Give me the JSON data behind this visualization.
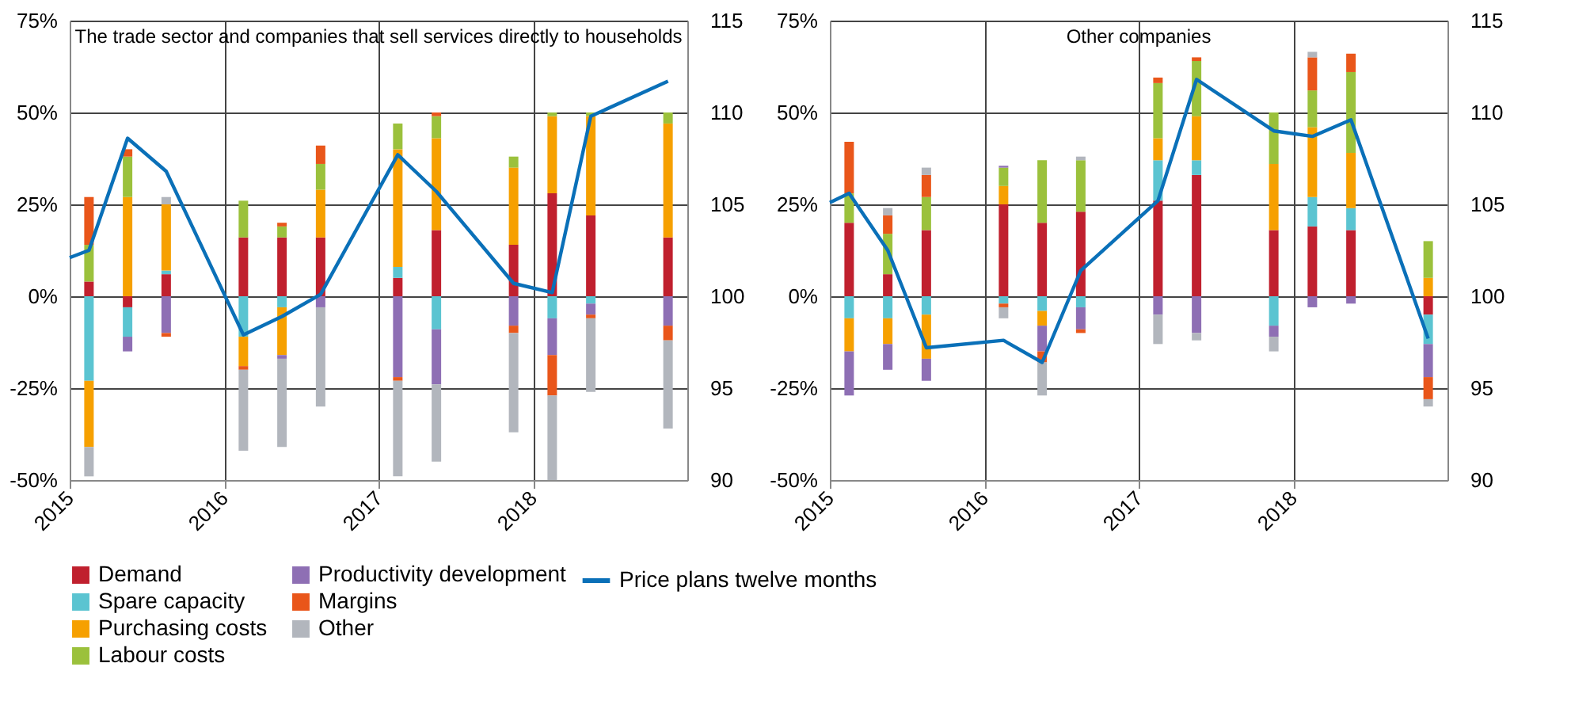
{
  "chart_data": [
    {
      "type": "bar",
      "stacked": true,
      "title": "The trade sector and companies that sell services directly to households",
      "x": [
        2015.125,
        2015.375,
        2015.625,
        2016.125,
        2016.375,
        2016.625,
        2017.125,
        2017.375,
        2017.875,
        2018.125,
        2018.375,
        2018.875
      ],
      "xlim": [
        2015,
        2019
      ],
      "xticks": [
        2015,
        2016,
        2017,
        2018
      ],
      "ylim": [
        -50,
        75
      ],
      "yticks": [
        {
          "value": -50,
          "label": "-50%"
        },
        {
          "value": -25,
          "label": "-25%"
        },
        {
          "value": 0,
          "label": "0%"
        },
        {
          "value": 25,
          "label": "25%"
        },
        {
          "value": 50,
          "label": "50%"
        },
        {
          "value": 75,
          "label": "75%"
        }
      ],
      "y2lim": [
        90,
        115
      ],
      "y2ticks": [
        90,
        95,
        100,
        105,
        110,
        115
      ],
      "grid": true,
      "legend": "bottom",
      "series": [
        {
          "name": "Price plans twelve months",
          "type": "line",
          "axis": "y2",
          "color": "#0a70b8",
          "x": [
            2015,
            2015.125,
            2015.375,
            2015.625,
            2016.125,
            2016.375,
            2016.625,
            2017.125,
            2017.375,
            2017.875,
            2018.125,
            2018.375,
            2018.875
          ],
          "values": [
            102.1,
            102.5,
            108.6,
            106.8,
            97.9,
            98.9,
            100.1,
            107.7,
            105.7,
            100.7,
            100.2,
            109.8,
            111.7
          ]
        },
        {
          "name": "Demand",
          "color": "#c0202e",
          "values": [
            4,
            -3,
            6,
            16,
            16,
            16,
            5,
            18,
            14,
            28,
            22,
            16
          ]
        },
        {
          "name": "Spare capacity",
          "color": "#5bc4d1",
          "values": [
            -23,
            -8,
            1,
            -11,
            -3,
            null,
            3,
            -9,
            null,
            -6,
            -2,
            null
          ]
        },
        {
          "name": "Purchasing costs",
          "color": "#f6a000",
          "values": [
            -18,
            27,
            18,
            -8,
            -13,
            13,
            32,
            25,
            21,
            21,
            27,
            31
          ]
        },
        {
          "name": "Labour costs",
          "color": "#9bc13c",
          "values": [
            10,
            11,
            null,
            10,
            3,
            7,
            7,
            6,
            3,
            1,
            1,
            3
          ]
        },
        {
          "name": "Productivity development",
          "color": "#8e6fb4",
          "values": [
            null,
            -4,
            -10,
            null,
            -1,
            -3,
            -22,
            -15,
            -8,
            -10,
            -3,
            -8
          ]
        },
        {
          "name": "Margins",
          "color": "#e9561a",
          "values": [
            13,
            2,
            -1,
            -1,
            1,
            5,
            -1,
            1,
            -2,
            -11,
            -1,
            -4
          ]
        },
        {
          "name": "Other",
          "color": "#b2b6bd",
          "values": [
            -8,
            null,
            2,
            -22,
            -24,
            -27,
            -26,
            -21,
            -27,
            -23,
            -20,
            -24
          ]
        }
      ]
    },
    {
      "type": "bar",
      "stacked": true,
      "title": "Other companies",
      "x": [
        2015.125,
        2015.375,
        2015.625,
        2016.125,
        2016.375,
        2016.625,
        2017.125,
        2017.375,
        2017.875,
        2018.125,
        2018.375,
        2018.875
      ],
      "xlim": [
        2015,
        2019
      ],
      "xticks": [
        2015,
        2016,
        2017,
        2018
      ],
      "ylim": [
        -50,
        75
      ],
      "yticks": [
        {
          "value": -50,
          "label": "-50%"
        },
        {
          "value": -25,
          "label": "-25%"
        },
        {
          "value": 0,
          "label": "0%"
        },
        {
          "value": 25,
          "label": "25%"
        },
        {
          "value": 50,
          "label": "50%"
        },
        {
          "value": 75,
          "label": "75%"
        }
      ],
      "y2lim": [
        90,
        115
      ],
      "y2ticks": [
        90,
        95,
        100,
        105,
        110,
        115
      ],
      "grid": true,
      "legend": "bottom",
      "series": [
        {
          "name": "Price plans twelve months",
          "type": "line",
          "axis": "y2",
          "color": "#0a70b8",
          "x": [
            2015,
            2015.125,
            2015.375,
            2015.625,
            2016.125,
            2016.375,
            2016.625,
            2017.125,
            2017.375,
            2017.875,
            2018.125,
            2018.375,
            2018.875
          ],
          "values": [
            105.1,
            105.6,
            102.5,
            97.2,
            97.6,
            96.4,
            101.4,
            105.2,
            111.8,
            109.0,
            108.7,
            109.6,
            97.7
          ]
        },
        {
          "name": "Demand",
          "color": "#c0202e",
          "values": [
            20,
            6,
            18,
            25,
            20,
            23,
            26,
            33,
            18,
            19,
            18,
            -5
          ]
        },
        {
          "name": "Spare capacity",
          "color": "#5bc4d1",
          "values": [
            -6,
            -6,
            -5,
            -2,
            -4,
            -3,
            11,
            4,
            -8,
            8,
            6,
            -8
          ]
        },
        {
          "name": "Purchasing costs",
          "color": "#f6a000",
          "values": [
            -9,
            -7,
            -12,
            5,
            -4,
            null,
            6,
            12,
            18,
            19,
            15,
            5
          ]
        },
        {
          "name": "Labour costs",
          "color": "#9bc13c",
          "values": [
            8,
            11,
            9,
            5,
            17,
            14,
            15,
            15,
            14,
            10,
            22,
            10
          ]
        },
        {
          "name": "Productivity development",
          "color": "#8e6fb4",
          "values": [
            -12,
            -7,
            -6,
            0.5,
            -7,
            -6,
            -5,
            -10,
            -3,
            -3,
            -2,
            -9
          ]
        },
        {
          "name": "Margins",
          "color": "#e9561a",
          "values": [
            14,
            5,
            6,
            -1,
            -3,
            -1,
            1.5,
            1,
            null,
            9,
            5,
            -6
          ]
        },
        {
          "name": "Other",
          "color": "#b2b6bd",
          "values": [
            null,
            2,
            2,
            -3,
            -9,
            1,
            -8,
            -2,
            -4,
            1.5,
            null,
            -2
          ]
        }
      ]
    }
  ]
}
